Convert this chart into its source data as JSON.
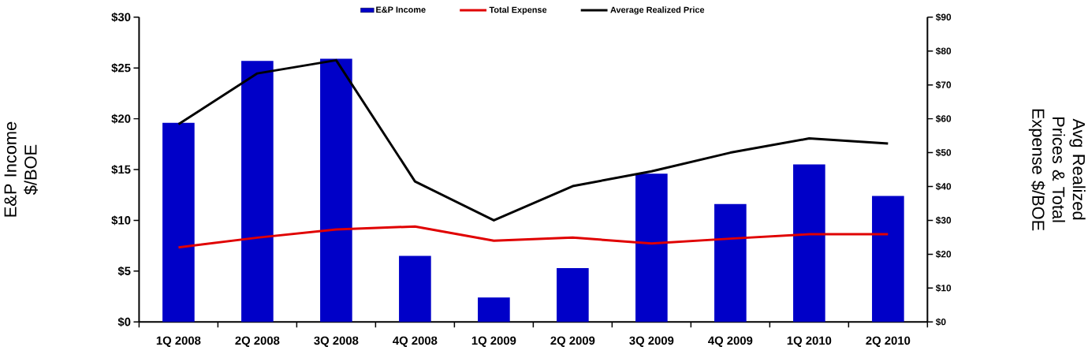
{
  "chart_data": {
    "type": "bar",
    "ylabel": "E&P Income $/BOE",
    "y2label": "Avg Realized Prices & Total Expense $/BOE",
    "categories": [
      "1Q 2008",
      "2Q 2008",
      "3Q 2008",
      "4Q 2008",
      "1Q 2009",
      "2Q 2009",
      "3Q 2009",
      "4Q 2009",
      "1Q 2010",
      "2Q 2010"
    ],
    "series": [
      {
        "name": "E&P Income",
        "color": "#0000c8",
        "values": [
          19.6,
          25.7,
          25.9,
          6.5,
          2.4,
          5.3,
          14.6,
          11.6,
          15.5,
          12.4
        ]
      },
      {
        "name": "Total Expense",
        "type": "line",
        "axis": "y2",
        "color": "#e00000",
        "values": [
          22.0,
          24.9,
          27.3,
          28.2,
          24.0,
          24.9,
          23.2,
          24.6,
          25.9,
          25.9
        ]
      },
      {
        "name": "Average Realized Price",
        "type": "line",
        "axis": "y2",
        "color": "#000000",
        "values": [
          58.4,
          73.4,
          77.3,
          41.5,
          30.0,
          40.1,
          44.5,
          50.0,
          54.2,
          52.7
        ]
      }
    ],
    "ylim": [
      0,
      30
    ],
    "yticks": [
      {
        "value": 0,
        "label": "$0"
      },
      {
        "value": 5,
        "label": "$5"
      },
      {
        "value": 10,
        "label": "$10"
      },
      {
        "value": 15,
        "label": "$15"
      },
      {
        "value": 20,
        "label": "$20"
      },
      {
        "value": 25,
        "label": "$25"
      },
      {
        "value": 30,
        "label": "$30"
      }
    ],
    "y2lim": [
      0,
      90
    ],
    "y2ticks": [
      {
        "value": 0,
        "label": "$0"
      },
      {
        "value": 10,
        "label": "$10"
      },
      {
        "value": 20,
        "label": "$20"
      },
      {
        "value": 30,
        "label": "$30"
      },
      {
        "value": 40,
        "label": "$40"
      },
      {
        "value": 50,
        "label": "$50"
      },
      {
        "value": 60,
        "label": "$60"
      },
      {
        "value": 70,
        "label": "$70"
      },
      {
        "value": 80,
        "label": "$80"
      },
      {
        "value": 90,
        "label": "$90"
      }
    ],
    "legend": "top",
    "grid": false,
    "marker": "none",
    "line_style": "solid"
  }
}
